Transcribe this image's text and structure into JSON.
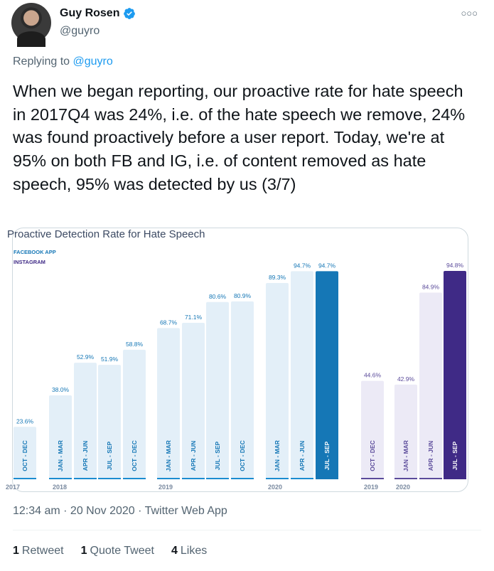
{
  "tweet": {
    "author_name": "Guy Rosen",
    "handle": "@guyro",
    "replying_prefix": "Replying to",
    "replying_to": "@guyro",
    "text": "When we began reporting, our proactive rate for hate speech in 2017Q4 was 24%, i.e. of the hate speech we remove, 24% was found proactively before a user report. Today, we're at 95% on both FB and IG, i.e. of content removed as hate speech, 95% was detected by us (3/7)",
    "timestamp": "12:34 am · 20 Nov 2020 · Twitter Web App",
    "stats": [
      {
        "count": "1",
        "label": "Retweet"
      },
      {
        "count": "1",
        "label": "Quote Tweet"
      },
      {
        "count": "4",
        "label": "Likes"
      }
    ]
  },
  "icons": {
    "more": "more-options-icon",
    "verified": "verified-badge-icon"
  },
  "colors": {
    "accent": "#1d9bf0",
    "fb_bar": "#e3eff8",
    "fb_highlight": "#1577b6",
    "ig_bar": "#eceaf6",
    "ig_highlight": "#3f2a86"
  },
  "chart_data": {
    "type": "bar",
    "title": "Proactive Detection Rate for Hate Speech",
    "legend": [
      "FACEBOOK APP",
      "INSTAGRAM"
    ],
    "ylim": [
      0,
      100
    ],
    "series": [
      {
        "name": "FACEBOOK APP",
        "categories": [
          "OCT - DEC",
          "JAN - MAR",
          "APR - JUN",
          "JUL - SEP",
          "OCT - DEC",
          "JAN - MAR",
          "APR - JUN",
          "JUL - SEP",
          "OCT - DEC",
          "JAN - MAR",
          "APR - JUN",
          "JUL - SEP"
        ],
        "values": [
          23.6,
          38.0,
          52.9,
          51.9,
          58.8,
          68.7,
          71.1,
          80.6,
          80.9,
          89.3,
          94.7,
          94.7
        ],
        "labels": [
          "23.6%",
          "38.0%",
          "52.9%",
          "51.9%",
          "58.8%",
          "68.7%",
          "71.1%",
          "80.6%",
          "80.9%",
          "89.3%",
          "94.7%",
          "94.7%"
        ],
        "year_groups": [
          [
            "2017",
            1
          ],
          [
            "2018",
            4
          ],
          [
            "2019",
            4
          ],
          [
            "2020",
            3
          ]
        ]
      },
      {
        "name": "INSTAGRAM",
        "categories": [
          "OCT - DEC",
          "JAN - MAR",
          "APR - JUN",
          "JUL - SEP"
        ],
        "values": [
          44.6,
          42.9,
          84.9,
          94.8
        ],
        "labels": [
          "44.6%",
          "42.9%",
          "84.9%",
          "94.8%"
        ],
        "year_groups": [
          [
            "2019",
            1
          ],
          [
            "2020",
            3
          ]
        ]
      }
    ]
  }
}
